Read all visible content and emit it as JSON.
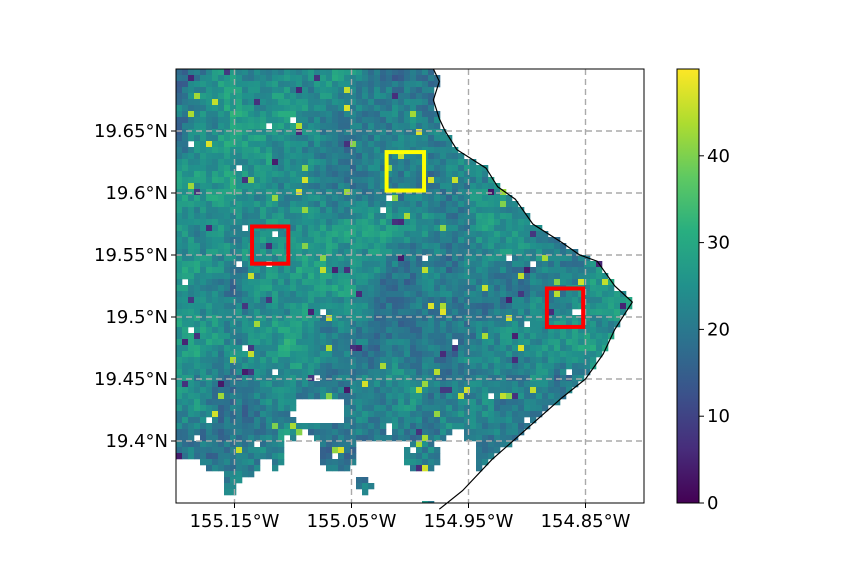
{
  "chart_data": {
    "type": "heatmap",
    "title": "",
    "xlabel": "",
    "ylabel": "",
    "x_ticks": [
      "155.15°W",
      "155.05°W",
      "154.95°W",
      "154.85°W"
    ],
    "x_tick_values": [
      -155.15,
      -155.05,
      -154.95,
      -154.85
    ],
    "y_ticks": [
      "19.65°N",
      "19.6°N",
      "19.55°N",
      "19.5°N",
      "19.45°N",
      "19.4°N"
    ],
    "y_tick_values": [
      19.65,
      19.6,
      19.55,
      19.5,
      19.45,
      19.4
    ],
    "xlim": [
      -155.2,
      -154.8
    ],
    "ylim": [
      19.35,
      19.7
    ],
    "grid": true,
    "grid_style": "dashed",
    "colormap": "viridis",
    "colorbar": {
      "min": 0,
      "max": 50,
      "ticks": [
        "0",
        "10",
        "20",
        "30",
        "40"
      ],
      "tick_values": [
        0,
        10,
        20,
        30,
        40
      ]
    },
    "typical_value_range": [
      15,
      30
    ],
    "coastline": [
      [
        -154.98,
        19.7
      ],
      [
        -154.975,
        19.69
      ],
      [
        -154.98,
        19.675
      ],
      [
        -154.975,
        19.66
      ],
      [
        -154.97,
        19.65
      ],
      [
        -154.96,
        19.635
      ],
      [
        -154.935,
        19.62
      ],
      [
        -154.925,
        19.605
      ],
      [
        -154.91,
        19.595
      ],
      [
        -154.895,
        19.575
      ],
      [
        -154.87,
        19.56
      ],
      [
        -154.855,
        19.55
      ],
      [
        -154.84,
        19.545
      ],
      [
        -154.825,
        19.525
      ],
      [
        -154.81,
        19.512
      ],
      [
        -154.825,
        19.49
      ],
      [
        -154.835,
        19.47
      ],
      [
        -154.85,
        19.45
      ],
      [
        -154.87,
        19.435
      ],
      [
        -154.9,
        19.41
      ],
      [
        -154.93,
        19.385
      ],
      [
        -154.955,
        19.36
      ],
      [
        -154.975,
        19.345
      ]
    ],
    "regions": [
      {
        "color": "#ff0000",
        "lon": [
          -155.135,
          -155.104
        ],
        "lat": [
          19.543,
          19.573
        ]
      },
      {
        "color": "#ff0000",
        "lon": [
          -154.883,
          -154.852
        ],
        "lat": [
          19.492,
          19.523
        ]
      },
      {
        "color": "#ffff00",
        "lon": [
          -155.02,
          -154.988
        ],
        "lat": [
          19.602,
          19.633
        ]
      }
    ]
  },
  "colors": {
    "coastline": "#000000",
    "grid": "#aaaaaa",
    "region_red": "#ff0000",
    "region_yellow": "#ffff00"
  }
}
